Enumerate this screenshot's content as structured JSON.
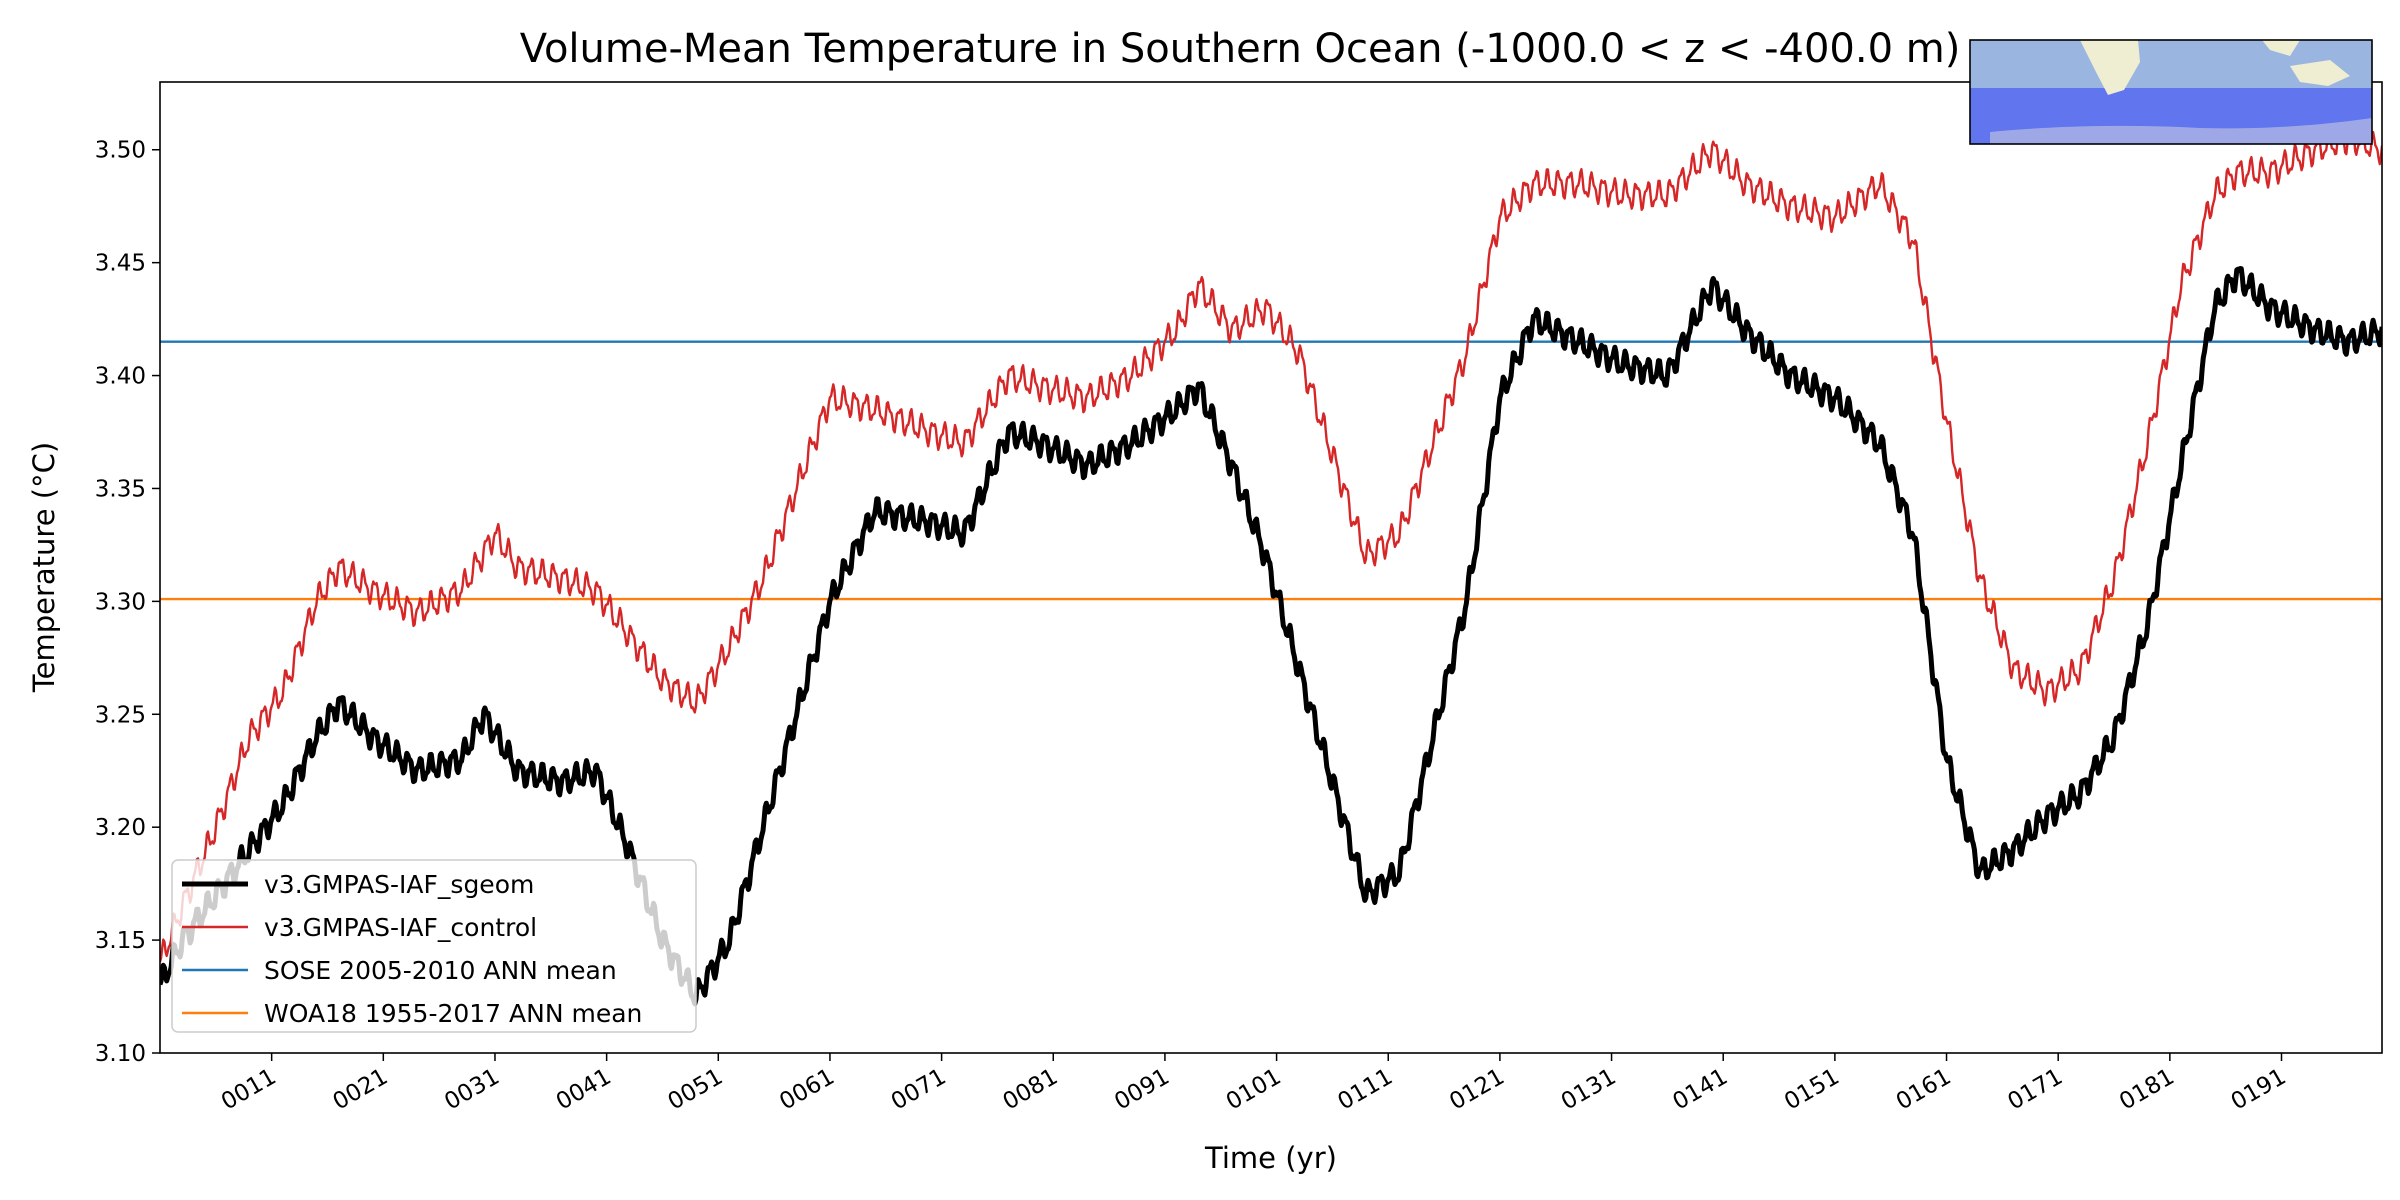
{
  "chart_data": {
    "type": "line",
    "title": "Volume-Mean Temperature in Southern Ocean (-1000.0 < z < -400.0 m)",
    "xlabel": "Time (yr)",
    "ylabel": "Temperature (°C)",
    "xlim": [
      1,
      200
    ],
    "ylim": [
      3.1,
      3.53
    ],
    "grid": false,
    "legend_placement": "lower-left",
    "x_ticks": [
      11,
      21,
      31,
      41,
      51,
      61,
      71,
      81,
      91,
      101,
      111,
      121,
      131,
      141,
      151,
      161,
      171,
      181,
      191
    ],
    "x_tick_labels": [
      "0011",
      "0021",
      "0031",
      "0041",
      "0051",
      "0061",
      "0071",
      "0081",
      "0091",
      "0101",
      "0111",
      "0121",
      "0131",
      "0141",
      "0151",
      "0161",
      "0171",
      "0181",
      "0191"
    ],
    "y_ticks": [
      3.1,
      3.15,
      3.2,
      3.25,
      3.3,
      3.35,
      3.4,
      3.45,
      3.5
    ],
    "y_tick_labels": [
      "3.10",
      "3.15",
      "3.20",
      "3.25",
      "3.30",
      "3.35",
      "3.40",
      "3.45",
      "3.50"
    ],
    "series": [
      {
        "name": "v3.GMPAS-IAF_sgeom",
        "color": "#000000",
        "x": [
          1,
          3,
          6,
          9,
          12,
          15,
          17,
          20,
          24,
          28,
          30,
          33,
          37,
          40,
          43,
          46,
          49,
          52,
          55,
          58,
          61,
          65,
          70,
          73,
          77,
          80,
          84,
          88,
          92,
          94,
          97,
          100,
          103,
          106,
          109,
          112,
          115,
          118,
          121,
          124,
          128,
          132,
          136,
          140,
          143,
          147,
          151,
          155,
          158,
          161,
          164,
          167,
          170,
          173,
          176,
          179,
          182,
          185,
          187,
          190,
          194,
          197,
          200
        ],
        "values": [
          3.13,
          3.15,
          3.17,
          3.19,
          3.21,
          3.24,
          3.255,
          3.24,
          3.225,
          3.23,
          3.25,
          3.225,
          3.22,
          3.225,
          3.19,
          3.15,
          3.125,
          3.15,
          3.2,
          3.25,
          3.3,
          3.34,
          3.335,
          3.33,
          3.375,
          3.37,
          3.36,
          3.37,
          3.385,
          3.395,
          3.36,
          3.32,
          3.27,
          3.22,
          3.17,
          3.18,
          3.24,
          3.3,
          3.39,
          3.425,
          3.415,
          3.405,
          3.4,
          3.44,
          3.42,
          3.4,
          3.39,
          3.37,
          3.33,
          3.23,
          3.18,
          3.19,
          3.205,
          3.215,
          3.24,
          3.29,
          3.36,
          3.43,
          3.445,
          3.43,
          3.42,
          3.415,
          3.42
        ]
      },
      {
        "name": "v3.GMPAS-IAF_control",
        "color": "#d62728",
        "x": [
          1,
          3,
          6,
          9,
          12,
          15,
          17,
          20,
          24,
          28,
          31,
          33,
          37,
          40,
          43,
          46,
          49,
          52,
          55,
          58,
          61,
          65,
          70,
          73,
          77,
          80,
          84,
          88,
          92,
          94,
          97,
          100,
          103,
          106,
          109,
          112,
          115,
          118,
          121,
          124,
          128,
          132,
          136,
          140,
          143,
          147,
          151,
          155,
          158,
          161,
          164,
          167,
          170,
          173,
          176,
          179,
          182,
          185,
          187,
          190,
          194,
          197,
          200
        ],
        "values": [
          3.14,
          3.165,
          3.2,
          3.24,
          3.26,
          3.3,
          3.315,
          3.305,
          3.295,
          3.305,
          3.33,
          3.315,
          3.31,
          3.305,
          3.285,
          3.265,
          3.255,
          3.28,
          3.31,
          3.35,
          3.39,
          3.385,
          3.375,
          3.37,
          3.4,
          3.395,
          3.39,
          3.4,
          3.42,
          3.44,
          3.42,
          3.43,
          3.41,
          3.365,
          3.32,
          3.33,
          3.37,
          3.41,
          3.47,
          3.485,
          3.485,
          3.48,
          3.48,
          3.5,
          3.485,
          3.475,
          3.47,
          3.485,
          3.46,
          3.38,
          3.31,
          3.27,
          3.26,
          3.27,
          3.31,
          3.37,
          3.44,
          3.48,
          3.49,
          3.49,
          3.5,
          3.505,
          3.5
        ]
      },
      {
        "name": "SOSE 2005-2010 ANN mean",
        "color": "#1f77b4",
        "x": [
          1,
          200
        ],
        "values": [
          3.415,
          3.415
        ]
      },
      {
        "name": "WOA18 1955-2017 ANN mean",
        "color": "#ff7f0e",
        "x": [
          1,
          200
        ],
        "values": [
          3.301,
          3.301
        ]
      }
    ]
  }
}
